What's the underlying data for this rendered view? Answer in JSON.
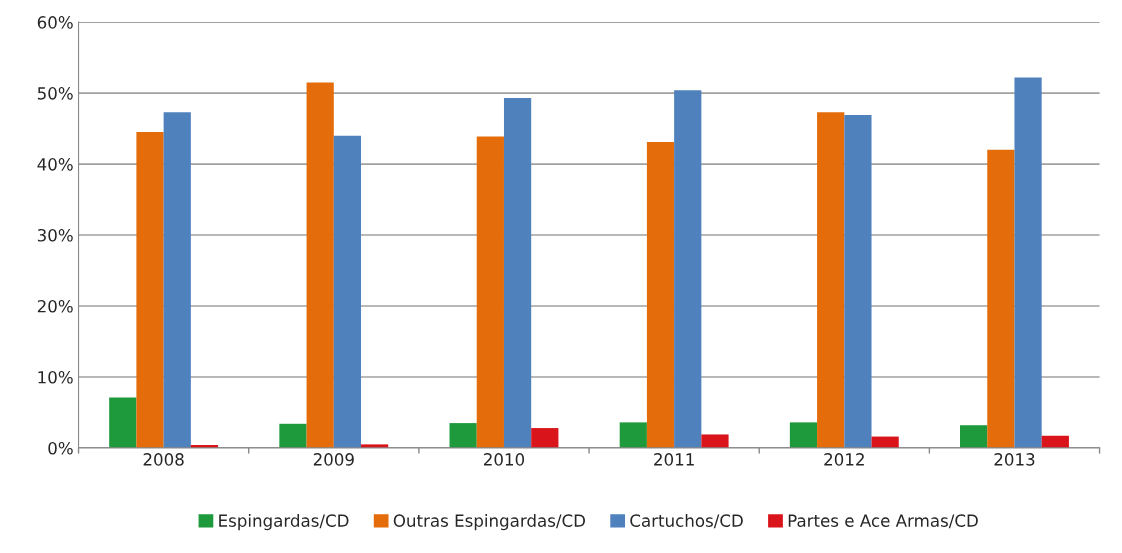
{
  "chart_data": {
    "type": "bar",
    "categories": [
      "2008",
      "2009",
      "2010",
      "2011",
      "2012",
      "2013"
    ],
    "series": [
      {
        "name": "Espingardas/CD",
        "color": "#1e9a3c",
        "values": [
          7.1,
          3.4,
          3.5,
          3.6,
          3.6,
          3.2
        ]
      },
      {
        "name": "Outras Espingardas/CD",
        "color": "#e46c0a",
        "values": [
          44.5,
          51.5,
          43.9,
          43.1,
          47.3,
          42.0
        ]
      },
      {
        "name": "Cartuchos/CD",
        "color": "#4f81bd",
        "values": [
          47.3,
          44.0,
          49.3,
          50.4,
          46.9,
          52.2
        ]
      },
      {
        "name": "Partes e Ace Armas/CD",
        "color": "#d9141b",
        "values": [
          0.4,
          0.5,
          2.8,
          1.9,
          1.6,
          1.7
        ]
      }
    ],
    "ylim": [
      0,
      60
    ],
    "yticks": [
      {
        "value": 0,
        "label": "0%"
      },
      {
        "value": 10,
        "label": "10%"
      },
      {
        "value": 20,
        "label": "20%"
      },
      {
        "value": 30,
        "label": "30%"
      },
      {
        "value": 40,
        "label": "40%"
      },
      {
        "value": 50,
        "label": "50%"
      },
      {
        "value": 60,
        "label": "60%"
      }
    ],
    "grid": "y",
    "legend": "bottom"
  }
}
